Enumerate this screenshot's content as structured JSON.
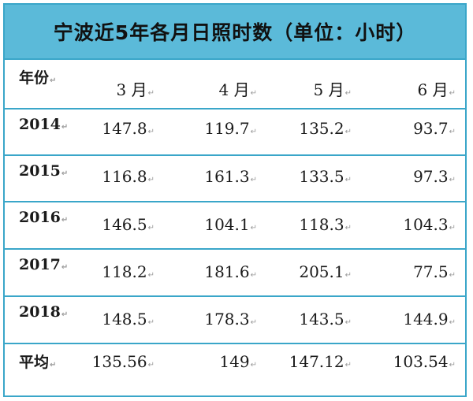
{
  "chart_data": {
    "type": "table",
    "title": "宁波近5年各月日照时数（单位：小时）",
    "header": [
      "年份",
      "3月",
      "4月",
      "5月",
      "6月"
    ],
    "rows": [
      {
        "year": "2014",
        "values": [
          "147.8",
          "119.7",
          "135.2",
          "93.7"
        ]
      },
      {
        "year": "2015",
        "values": [
          "116.8",
          "161.3",
          "133.5",
          "97.3"
        ]
      },
      {
        "year": "2016",
        "values": [
          "146.5",
          "104.1",
          "118.3",
          "104.3"
        ]
      },
      {
        "year": "2017",
        "values": [
          "118.2",
          "181.6",
          "205.1",
          "77.5"
        ]
      },
      {
        "year": "2018",
        "values": [
          "148.5",
          "178.3",
          "143.5",
          "144.9"
        ]
      },
      {
        "year": "平均",
        "values": [
          "135.56",
          "149",
          "147.12",
          "103.54"
        ]
      }
    ]
  },
  "colors": {
    "title_background": "#5bbad9",
    "border": "#3aa6c9"
  }
}
